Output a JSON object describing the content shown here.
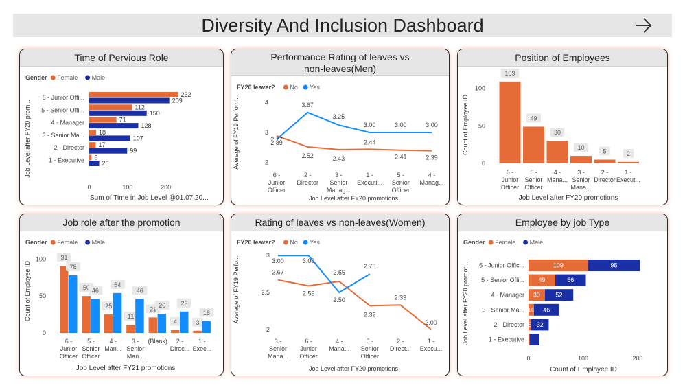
{
  "header": {
    "title": "Diversity And Inclusion Dashboard"
  },
  "colors": {
    "female": "#e66c37",
    "male": "#1a2ea6",
    "no": "#e66c37",
    "yes": "#118dff",
    "bar": "#e66c37"
  },
  "cards": {
    "c1": {
      "title": "Time of Pervious Role"
    },
    "c2": {
      "title_line1": "Performance Rating of leaves vs",
      "title_line2": "non-leaves(Men)"
    },
    "c3": {
      "title": "Position of Employees"
    },
    "c4": {
      "title": "Job role after the promotion"
    },
    "c5": {
      "title": "Rating of leaves vs non-leaves(Women)"
    },
    "c6": {
      "title": "Employee by job Type"
    }
  },
  "chart_data": [
    {
      "id": "c1",
      "type": "bar",
      "orientation": "horizontal",
      "legend_title": "Gender",
      "categories": [
        "6 - Junior Offi...",
        "5 - Senior Offi...",
        "4 - Manager",
        "3 - Senior Ma...",
        "2 - Director",
        "1 - Executive"
      ],
      "series": [
        {
          "name": "Female",
          "values": [
            232,
            112,
            71,
            18,
            17,
            6
          ]
        },
        {
          "name": "Male",
          "values": [
            209,
            150,
            128,
            107,
            99,
            26
          ]
        }
      ],
      "xticks": [
        0,
        100,
        200
      ],
      "xlim": [
        0,
        240
      ],
      "xlabel": "Sum of Time in Job Level @01.07.20...",
      "ylabel": "Job Level after FY20 prom..."
    },
    {
      "id": "c2",
      "type": "line",
      "legend_title": "FY20 leaver?",
      "categories": [
        "6 - Junior Officer",
        "2 - Director",
        "3 - Senior Manag...",
        "1 - Executi...",
        "5 - Senior Officer",
        "4 - Manag..."
      ],
      "series": [
        {
          "name": "No",
          "values": [
            2.89,
            2.52,
            2.43,
            2.44,
            2.41,
            2.39
          ]
        },
        {
          "name": "Yes",
          "values": [
            2.77,
            3.67,
            3.25,
            3.0,
            3.0,
            3.0
          ]
        }
      ],
      "yticks": [
        2,
        3,
        4
      ],
      "ylim": [
        1.9,
        4.1
      ],
      "xlabel": "Job Level after FY20 promotions",
      "ylabel": "Average of FY19 Perform..."
    },
    {
      "id": "c3",
      "type": "bar",
      "categories": [
        "6 - Junior Officer",
        "5 - Senior Officer",
        "4 - Mana...",
        "3 - Senior Mana...",
        "2 - Director",
        "1 - Execut..."
      ],
      "values": [
        109,
        49,
        30,
        10,
        5,
        2
      ],
      "yticks": [
        0,
        50,
        100
      ],
      "ylim": [
        0,
        118
      ],
      "xlabel": "Job Level after FY20 promotions",
      "ylabel": "Count of Employee ID"
    },
    {
      "id": "c4",
      "type": "bar",
      "legend_title": "Gender",
      "categories": [
        "6 - Junior Officer",
        "5 - Senior Officer",
        "4 - Man...",
        "3 - Senior Man...",
        "(Blank)",
        "2 - Direc...",
        "1 - Exec..."
      ],
      "series": [
        {
          "name": "Female",
          "values": [
            91,
            50,
            25,
            11,
            21,
            4,
            3
          ]
        },
        {
          "name": "Male",
          "values": [
            78,
            46,
            54,
            46,
            26,
            29,
            16
          ]
        }
      ],
      "yticks": [
        0,
        50,
        100
      ],
      "ylim": [
        0,
        104
      ],
      "xlabel": "Job Level after FY21 promotions",
      "ylabel": "Count of Employee ID"
    },
    {
      "id": "c5",
      "type": "line",
      "legend_title": "FY20 leaver?",
      "categories": [
        "3 - Senior Mana...",
        "6 - Junior Officer",
        "4 - Mana...",
        "5 - Senior Officer",
        "2 - Direct...",
        "1 - Execu..."
      ],
      "series": [
        {
          "name": "No",
          "values": [
            2.67,
            2.59,
            2.65,
            2.32,
            2.33,
            2.0
          ]
        },
        {
          "name": "Yes",
          "values": [
            3.0,
            3.0,
            2.5,
            2.75,
            null,
            null
          ]
        }
      ],
      "yticks": [
        2.0,
        2.5,
        3.0
      ],
      "ylim": [
        1.97,
        3.03
      ],
      "xlabel": "Job Level after FY20 promotions",
      "ylabel": "Average of FY19 Perfo..."
    },
    {
      "id": "c6",
      "type": "bar",
      "orientation": "horizontal",
      "stacked": true,
      "legend_title": "Gender",
      "categories": [
        "6 - Junior Offic...",
        "5 - Senior Offi...",
        "4 - Manager",
        "3 - Senior Ma...",
        "2 - Director",
        "1 - Executive"
      ],
      "series": [
        {
          "name": "Female",
          "values": [
            109,
            49,
            30,
            10,
            5,
            2
          ]
        },
        {
          "name": "Male",
          "values": [
            95,
            56,
            52,
            46,
            32,
            18
          ]
        }
      ],
      "xticks": [
        0,
        100,
        200
      ],
      "xlim": [
        0,
        215
      ],
      "xlabel": "Count of Employee ID",
      "ylabel": "Job Level after FY20 promot..."
    }
  ]
}
